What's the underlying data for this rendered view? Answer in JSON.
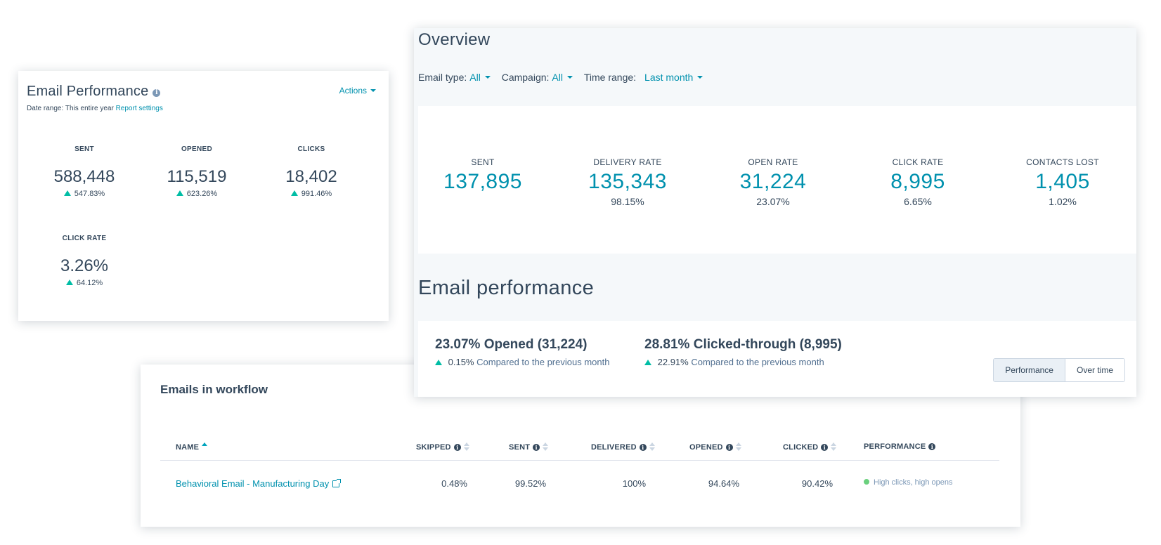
{
  "email_performance": {
    "title": "Email Performance",
    "info_icon": "i",
    "actions_label": "Actions",
    "date_range_label": "Date range:",
    "date_range_value": "This entire year",
    "report_settings": "Report settings",
    "metrics": [
      {
        "label": "SENT",
        "value": "588,448",
        "change": "547.83%"
      },
      {
        "label": "OPENED",
        "value": "115,519",
        "change": "623.26%"
      },
      {
        "label": "CLICKS",
        "value": "18,402",
        "change": "991.46%"
      },
      {
        "label": "CLICK RATE",
        "value": "3.26%",
        "change": "64.12%"
      }
    ]
  },
  "workflow": {
    "title": "Emails in workflow",
    "columns": [
      "NAME",
      "SKIPPED",
      "SENT",
      "DELIVERED",
      "OPENED",
      "CLICKED",
      "PERFORMANCE"
    ],
    "info_glyph": "i",
    "rows": [
      {
        "name": "Behavioral Email - Manufacturing Day",
        "skipped": "0.48%",
        "sent": "99.52%",
        "delivered": "100%",
        "opened": "94.64%",
        "clicked": "90.42%",
        "performance": "High clicks, high opens"
      }
    ]
  },
  "overview": {
    "title": "Overview",
    "filters": [
      {
        "label": "Email type:",
        "value": "All"
      },
      {
        "label": "Campaign:",
        "value": "All"
      },
      {
        "label": "Time range:",
        "value": "Last month"
      }
    ],
    "metrics": [
      {
        "label": "SENT",
        "value": "137,895",
        "pct": ""
      },
      {
        "label": "DELIVERY RATE",
        "value": "135,343",
        "pct": "98.15%"
      },
      {
        "label": "OPEN RATE",
        "value": "31,224",
        "pct": "23.07%"
      },
      {
        "label": "CLICK RATE",
        "value": "8,995",
        "pct": "6.65%"
      },
      {
        "label": "CONTACTS LOST",
        "value": "1,405",
        "pct": "1.02%"
      }
    ],
    "email_performance_title": "Email performance",
    "summaries": [
      {
        "headline": "23.07% Opened (31,224)",
        "delta": "0.15%",
        "compare": "Compared to the previous month"
      },
      {
        "headline": "28.81% Clicked-through (8,995)",
        "delta": "22.91%",
        "compare": "Compared to the previous month"
      }
    ],
    "view_toggle": {
      "performance": "Performance",
      "over_time": "Over time",
      "selected": "Performance"
    }
  },
  "colors": {
    "accent": "#0091ae",
    "text": "#33475b",
    "positive": "#00bda5",
    "status_green": "#6ad07d",
    "panel_bg": "#f5f8fa"
  },
  "icons": {
    "up_trend": "triangle-up-icon",
    "info": "info-icon",
    "sort": "sort-icon",
    "external_link": "external-link-icon",
    "dropdown": "caret-down-icon"
  }
}
